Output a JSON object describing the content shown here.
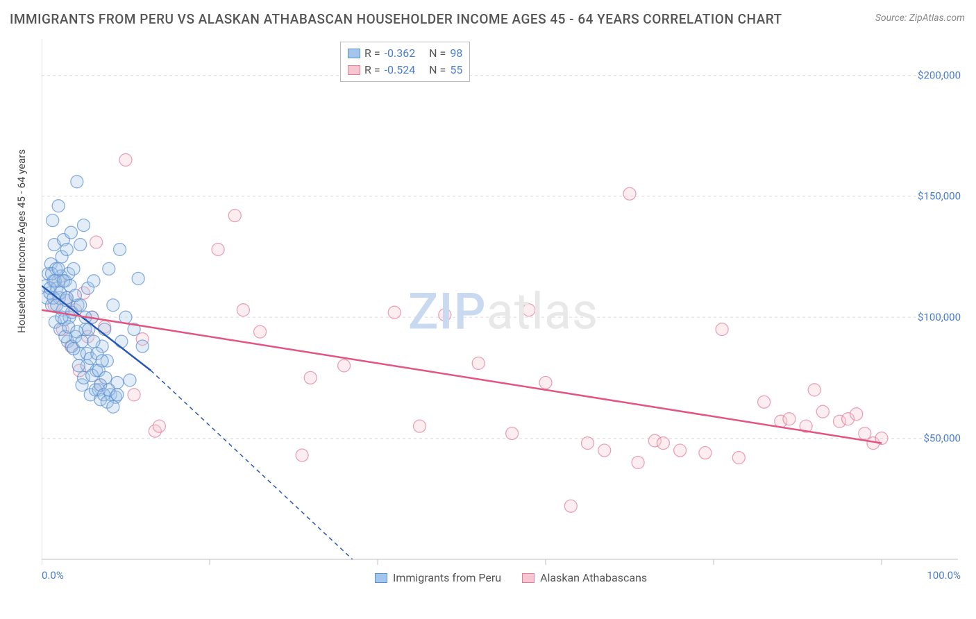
{
  "title": "IMMIGRANTS FROM PERU VS ALASKAN ATHABASCAN HOUSEHOLDER INCOME AGES 45 - 64 YEARS CORRELATION CHART",
  "source": "Source: ZipAtlas.com",
  "watermark_a": "ZIP",
  "watermark_b": "atlas",
  "chart": {
    "type": "scatter",
    "background_color": "#ffffff",
    "grid_color": "#dcdcdc",
    "axis_color": "#bfbfbf",
    "ylabel": "Householder Income Ages 45 - 64 years",
    "ylabel_fontsize": 15,
    "xlim": [
      0,
      100
    ],
    "ylim": [
      0,
      215000
    ],
    "ytick_values": [
      50000,
      100000,
      150000,
      200000
    ],
    "ytick_labels": [
      "$50,000",
      "$100,000",
      "$150,000",
      "$200,000"
    ],
    "xtick_values": [
      0,
      20,
      40,
      60,
      80,
      100
    ],
    "xtick_labels": [
      "0.0%",
      "",
      "",
      "",
      "",
      "100.0%"
    ],
    "marker_radius": 9,
    "marker_opacity": 0.32,
    "marker_stroke_opacity": 0.7,
    "tick_label_color": "#4a7ec9",
    "series": [
      {
        "name": "Immigrants from Peru",
        "color_fill": "#a4c6ea",
        "color_stroke": "#5a8fce",
        "trend_color": "#2858b4",
        "trend": {
          "x1": 0,
          "y1": 113000,
          "x2": 13,
          "y2": 78000,
          "ext_x2": 37,
          "ext_y2": 0
        },
        "points": [
          [
            0.5,
            113000
          ],
          [
            0.6,
            108000
          ],
          [
            0.8,
            118000
          ],
          [
            1.0,
            110000
          ],
          [
            1.1,
            122000
          ],
          [
            1.2,
            105000
          ],
          [
            1.3,
            140000
          ],
          [
            1.4,
            115000
          ],
          [
            1.5,
            130000
          ],
          [
            1.6,
            98000
          ],
          [
            1.7,
            120000
          ],
          [
            1.8,
            112000
          ],
          [
            2.0,
            146000
          ],
          [
            2.1,
            108000
          ],
          [
            2.2,
            95000
          ],
          [
            2.3,
            117000
          ],
          [
            2.4,
            125000
          ],
          [
            2.5,
            103000
          ],
          [
            2.6,
            132000
          ],
          [
            2.7,
            99000
          ],
          [
            2.8,
            115000
          ],
          [
            2.9,
            107000
          ],
          [
            3.0,
            128000
          ],
          [
            3.1,
            90000
          ],
          [
            3.2,
            118000
          ],
          [
            3.3,
            100000
          ],
          [
            3.5,
            135000
          ],
          [
            3.6,
            88000
          ],
          [
            3.8,
            120000
          ],
          [
            4.0,
            92000
          ],
          [
            4.2,
            156000
          ],
          [
            4.3,
            105000
          ],
          [
            4.5,
            85000
          ],
          [
            4.6,
            130000
          ],
          [
            4.8,
            72000
          ],
          [
            5.0,
            138000
          ],
          [
            5.2,
            95000
          ],
          [
            5.4,
            80000
          ],
          [
            5.5,
            112000
          ],
          [
            5.8,
            68000
          ],
          [
            6.0,
            100000
          ],
          [
            6.2,
            115000
          ],
          [
            6.5,
            78000
          ],
          [
            6.8,
            70000
          ],
          [
            7.0,
            66000
          ],
          [
            7.2,
            88000
          ],
          [
            7.5,
            95000
          ],
          [
            7.8,
            82000
          ],
          [
            8.0,
            120000
          ],
          [
            8.2,
            68000
          ],
          [
            8.5,
            105000
          ],
          [
            8.8,
            67000
          ],
          [
            9.0,
            73000
          ],
          [
            9.3,
            128000
          ],
          [
            9.5,
            90000
          ],
          [
            10.0,
            100000
          ],
          [
            10.5,
            74000
          ],
          [
            11.0,
            95000
          ],
          [
            11.5,
            116000
          ],
          [
            12.0,
            88000
          ],
          [
            1.0,
            112000
          ],
          [
            1.2,
            118000
          ],
          [
            1.4,
            108000
          ],
          [
            1.6,
            115000
          ],
          [
            1.8,
            105000
          ],
          [
            2.0,
            120000
          ],
          [
            2.2,
            110000
          ],
          [
            2.4,
            100000
          ],
          [
            2.6,
            115000
          ],
          [
            2.8,
            92000
          ],
          [
            3.0,
            108000
          ],
          [
            3.2,
            96000
          ],
          [
            3.4,
            113000
          ],
          [
            3.6,
            102000
          ],
          [
            3.8,
            87000
          ],
          [
            4.0,
            109000
          ],
          [
            4.2,
            94000
          ],
          [
            4.4,
            80000
          ],
          [
            4.6,
            105000
          ],
          [
            4.8,
            90000
          ],
          [
            5.0,
            75000
          ],
          [
            5.2,
            100000
          ],
          [
            5.4,
            85000
          ],
          [
            5.6,
            95000
          ],
          [
            5.8,
            83000
          ],
          [
            6.0,
            76000
          ],
          [
            6.2,
            90000
          ],
          [
            6.4,
            70000
          ],
          [
            6.6,
            85000
          ],
          [
            6.8,
            78000
          ],
          [
            7.0,
            72000
          ],
          [
            7.2,
            82000
          ],
          [
            7.4,
            68000
          ],
          [
            7.6,
            75000
          ],
          [
            7.8,
            65000
          ],
          [
            8.0,
            70000
          ],
          [
            8.5,
            63000
          ],
          [
            9.0,
            68000
          ]
        ]
      },
      {
        "name": "Alaskan Athabascans",
        "color_fill": "#f7c6d1",
        "color_stroke": "#e07f9a",
        "trend_color": "#e35480",
        "trend": {
          "x1": 0,
          "y1": 103000,
          "x2": 100,
          "y2": 48000
        },
        "points": [
          [
            1.5,
            105000
          ],
          [
            2.0,
            115000
          ],
          [
            2.5,
            95000
          ],
          [
            3.0,
            108000
          ],
          [
            3.5,
            88000
          ],
          [
            4.0,
            103000
          ],
          [
            4.5,
            78000
          ],
          [
            5.0,
            110000
          ],
          [
            5.5,
            92000
          ],
          [
            6.0,
            100000
          ],
          [
            6.5,
            131000
          ],
          [
            7.0,
            72000
          ],
          [
            7.5,
            96000
          ],
          [
            10.0,
            165000
          ],
          [
            11.0,
            68000
          ],
          [
            12.0,
            91000
          ],
          [
            13.5,
            53000
          ],
          [
            14.0,
            55000
          ],
          [
            21.0,
            128000
          ],
          [
            23.0,
            142000
          ],
          [
            24.0,
            103000
          ],
          [
            26.0,
            94000
          ],
          [
            31.0,
            43000
          ],
          [
            32.0,
            75000
          ],
          [
            36.0,
            80000
          ],
          [
            42.0,
            102000
          ],
          [
            45.0,
            55000
          ],
          [
            48.0,
            101000
          ],
          [
            52.0,
            81000
          ],
          [
            56.0,
            52000
          ],
          [
            58.0,
            103000
          ],
          [
            60.0,
            73000
          ],
          [
            63.0,
            22000
          ],
          [
            65.0,
            48000
          ],
          [
            67.0,
            45000
          ],
          [
            70.0,
            151000
          ],
          [
            71.0,
            40000
          ],
          [
            73.0,
            49000
          ],
          [
            74.0,
            48000
          ],
          [
            76.0,
            45000
          ],
          [
            79.0,
            44000
          ],
          [
            81.0,
            95000
          ],
          [
            83.0,
            42000
          ],
          [
            86.0,
            65000
          ],
          [
            88.0,
            57000
          ],
          [
            89.0,
            58000
          ],
          [
            91.0,
            55000
          ],
          [
            92.0,
            70000
          ],
          [
            93.0,
            61000
          ],
          [
            95.0,
            57000
          ],
          [
            96.0,
            58000
          ],
          [
            97.0,
            60000
          ],
          [
            98.0,
            52000
          ],
          [
            99.0,
            48000
          ],
          [
            100.0,
            50000
          ]
        ]
      }
    ]
  },
  "legend_top": [
    {
      "swatch_fill": "#a4c6ea",
      "swatch_stroke": "#5a8fce",
      "r_label": "R =",
      "r_val": "-0.362",
      "n_label": "N =",
      "n_val": "98"
    },
    {
      "swatch_fill": "#f7c6d1",
      "swatch_stroke": "#e07f9a",
      "r_label": "R =",
      "r_val": "-0.524",
      "n_label": "N =",
      "n_val": "55"
    }
  ],
  "legend_bottom": [
    {
      "swatch_fill": "#a4c6ea",
      "swatch_stroke": "#5a8fce",
      "label": "Immigrants from Peru"
    },
    {
      "swatch_fill": "#f7c6d1",
      "swatch_stroke": "#e07f9a",
      "label": "Alaskan Athabascans"
    }
  ]
}
